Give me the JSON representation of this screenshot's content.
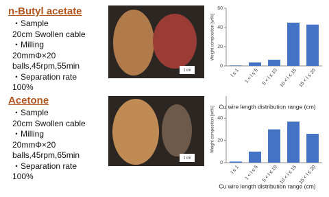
{
  "sections": [
    {
      "title": "n-Butyl acetate",
      "lines": [
        "・Sample",
        "20cm Swollen cable",
        "・Milling",
        "20mmΦ×20",
        "balls,45rpm,55min",
        "・Separation rate",
        "100%"
      ]
    },
    {
      "title": "Acetone",
      "lines": [
        "・Sample",
        "20cm Swollen cable",
        "・Milling",
        "20mmΦ×20",
        "balls,45rpm,65min",
        "・Separation rate",
        "100%"
      ]
    }
  ],
  "photos": [
    {
      "scale_label": "1 cm"
    },
    {
      "scale_label": "1 cm"
    }
  ],
  "chart_data": [
    {
      "type": "bar",
      "y_label": "Weight composition [wt%]",
      "x_label": "Cu wire length distribution range (cm)",
      "categories": [
        "l ≤ 1",
        "1 < l ≤ 5",
        "5 < l ≤ 10",
        "10 < l ≤ 15",
        "15 < l ≤ 20"
      ],
      "values": [
        0.5,
        3.6,
        6.4,
        45,
        43
      ],
      "color": "#4472c4",
      "ylim": [
        0,
        60
      ],
      "yticks": [
        0,
        20,
        40,
        60
      ]
    },
    {
      "type": "bar",
      "y_label": "Weight composition [wt%]",
      "x_label": "Cu wire length distribution range (cm)",
      "categories": [
        "l ≤ 1",
        "1 < l ≤ 5",
        "5 < l ≤ 10",
        "10 < l ≤ 15",
        "15 < l ≤ 20"
      ],
      "values": [
        1,
        10,
        30,
        37,
        26
      ],
      "color": "#4472c4",
      "ylim": [
        0,
        60
      ],
      "yticks": [
        0,
        20,
        40
      ]
    }
  ]
}
